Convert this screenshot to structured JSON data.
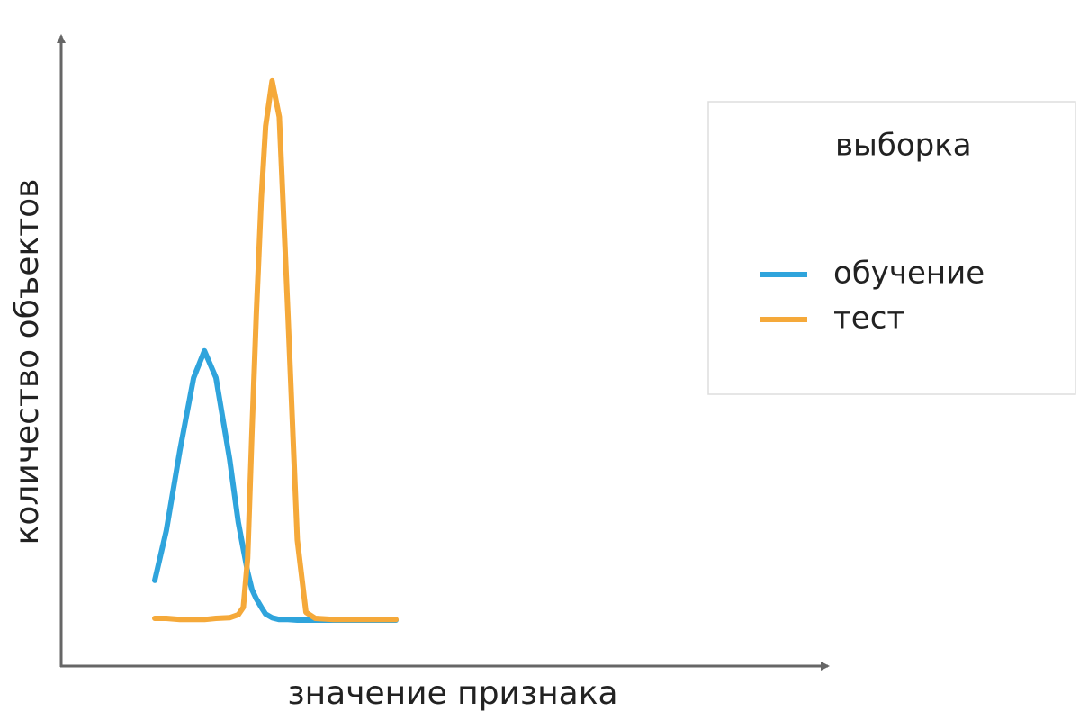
{
  "chart_data": {
    "type": "line",
    "xlabel": "значение признака",
    "ylabel": "количество объектов",
    "x": [
      13,
      14.6,
      16.5,
      18.4,
      19.9,
      21.5,
      23.4,
      24.6,
      25.3,
      25.9,
      26.5,
      27.1,
      27.8,
      28.4,
      29.3,
      30.3,
      31.5,
      32.8,
      34,
      35.3,
      37.8,
      41.5,
      46.5
    ],
    "series": [
      {
        "name": "обучение",
        "color": "#2fa4dc",
        "values": [
          14.0,
          22.1,
          35.3,
          47.1,
          51.5,
          47.1,
          33.8,
          23.5,
          19.1,
          15.4,
          12.5,
          11.0,
          9.6,
          8.5,
          7.9,
          7.6,
          7.6,
          7.5,
          7.5,
          7.5,
          7.5,
          7.5,
          7.5
        ]
      },
      {
        "name": "тест",
        "color": "#f5a93a",
        "values": [
          7.8,
          7.8,
          7.6,
          7.6,
          7.6,
          7.8,
          7.9,
          8.4,
          9.6,
          17.6,
          38.2,
          57.4,
          76.5,
          88.2,
          95.6,
          89.7,
          57.4,
          20.6,
          8.8,
          7.8,
          7.6,
          7.6,
          7.6
        ]
      }
    ],
    "xlim": [
      0,
      104
    ],
    "ylim": [
      0,
      100
    ],
    "legend": "upper right",
    "legend_title": "выборка",
    "grid": false
  }
}
